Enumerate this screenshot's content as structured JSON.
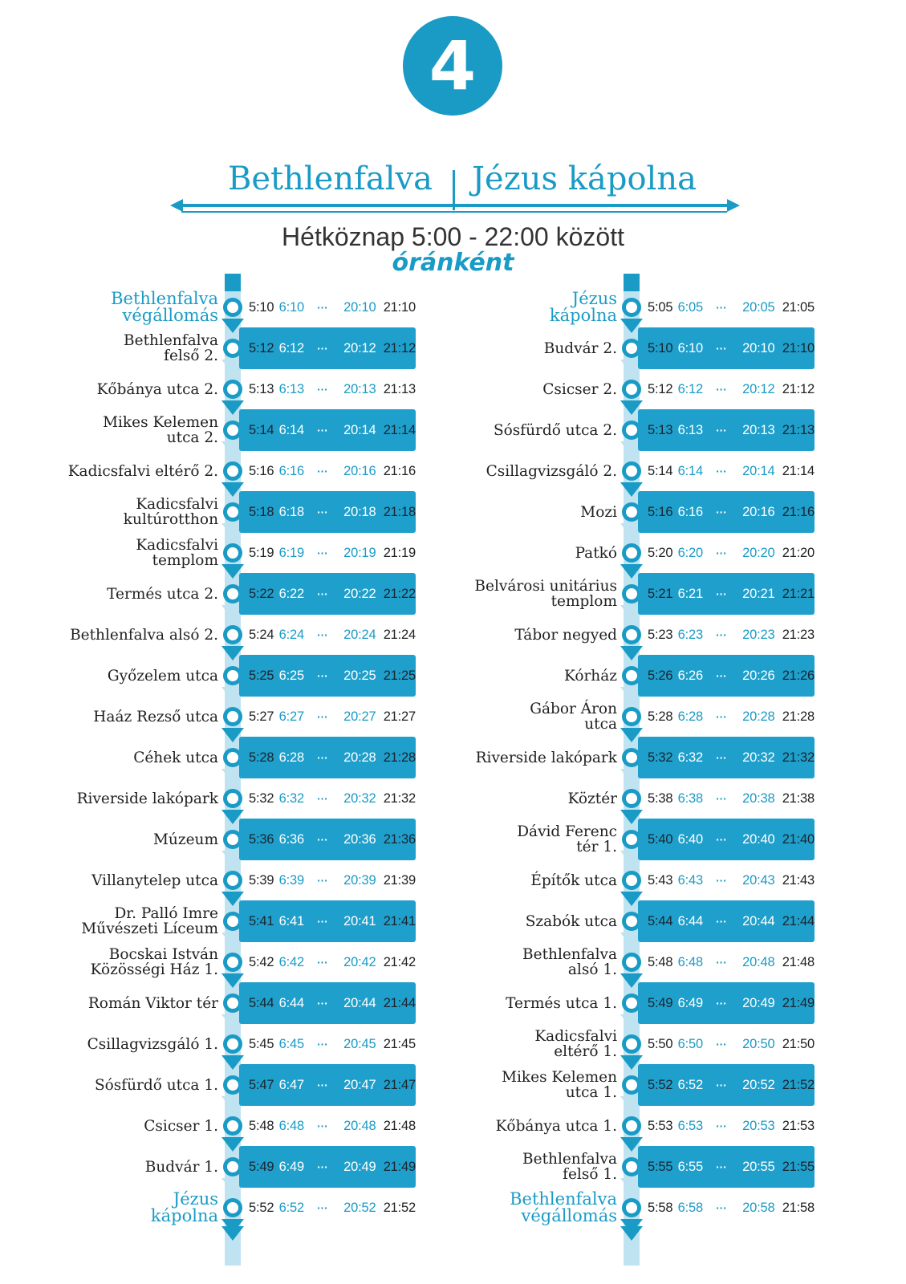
{
  "route": "4",
  "header": {
    "left_terminal": "Bethlenfalva",
    "right_terminal": "Jézus kápolna",
    "schedule": "Hétköznap 5:00 - 22:00 között",
    "frequency": "óránként"
  },
  "ellipsis": "···",
  "colors": {
    "accent": "#1a9bc6",
    "spine": "#bfe3f1"
  },
  "left_stops": [
    {
      "name": [
        "Bethlenfalva",
        "végállomás"
      ],
      "terminal": true,
      "times": [
        "5:10",
        "6:10",
        "20:10",
        "21:10"
      ]
    },
    {
      "name": [
        "Bethlenfalva",
        "felső 2."
      ],
      "times": [
        "5:12",
        "6:12",
        "20:12",
        "21:12"
      ]
    },
    {
      "name": [
        "Kőbánya utca 2."
      ],
      "times": [
        "5:13",
        "6:13",
        "20:13",
        "21:13"
      ]
    },
    {
      "name": [
        "Mikes Kelemen",
        "utca 2."
      ],
      "times": [
        "5:14",
        "6:14",
        "20:14",
        "21:14"
      ]
    },
    {
      "name": [
        "Kadicsfalvi eltérő 2."
      ],
      "times": [
        "5:16",
        "6:16",
        "20:16",
        "21:16"
      ]
    },
    {
      "name": [
        "Kadicsfalvi",
        "kultúrotthon"
      ],
      "times": [
        "5:18",
        "6:18",
        "20:18",
        "21:18"
      ]
    },
    {
      "name": [
        "Kadicsfalvi",
        "templom"
      ],
      "times": [
        "5:19",
        "6:19",
        "20:19",
        "21:19"
      ]
    },
    {
      "name": [
        "Termés utca 2."
      ],
      "times": [
        "5:22",
        "6:22",
        "20:22",
        "21:22"
      ]
    },
    {
      "name": [
        "Bethlenfalva alsó 2."
      ],
      "times": [
        "5:24",
        "6:24",
        "20:24",
        "21:24"
      ]
    },
    {
      "name": [
        "Győzelem utca"
      ],
      "times": [
        "5:25",
        "6:25",
        "20:25",
        "21:25"
      ]
    },
    {
      "name": [
        "Haáz Rezső utca"
      ],
      "times": [
        "5:27",
        "6:27",
        "20:27",
        "21:27"
      ]
    },
    {
      "name": [
        "Céhek utca"
      ],
      "times": [
        "5:28",
        "6:28",
        "20:28",
        "21:28"
      ]
    },
    {
      "name": [
        "Riverside lakópark"
      ],
      "times": [
        "5:32",
        "6:32",
        "20:32",
        "21:32"
      ]
    },
    {
      "name": [
        "Múzeum"
      ],
      "times": [
        "5:36",
        "6:36",
        "20:36",
        "21:36"
      ]
    },
    {
      "name": [
        "Villanytelep utca"
      ],
      "times": [
        "5:39",
        "6:39",
        "20:39",
        "21:39"
      ]
    },
    {
      "name": [
        "Dr. Palló Imre",
        "Művészeti Líceum"
      ],
      "times": [
        "5:41",
        "6:41",
        "20:41",
        "21:41"
      ]
    },
    {
      "name": [
        "Bocskai István",
        "Közösségi Ház 1."
      ],
      "times": [
        "5:42",
        "6:42",
        "20:42",
        "21:42"
      ]
    },
    {
      "name": [
        "Román Viktor tér"
      ],
      "times": [
        "5:44",
        "6:44",
        "20:44",
        "21:44"
      ]
    },
    {
      "name": [
        "Csillagvizsgáló 1."
      ],
      "times": [
        "5:45",
        "6:45",
        "20:45",
        "21:45"
      ]
    },
    {
      "name": [
        "Sósfürdő utca 1."
      ],
      "times": [
        "5:47",
        "6:47",
        "20:47",
        "21:47"
      ]
    },
    {
      "name": [
        "Csicser 1."
      ],
      "times": [
        "5:48",
        "6:48",
        "20:48",
        "21:48"
      ]
    },
    {
      "name": [
        "Budvár 1."
      ],
      "times": [
        "5:49",
        "6:49",
        "20:49",
        "21:49"
      ]
    },
    {
      "name": [
        "Jézus",
        "kápolna"
      ],
      "terminal": true,
      "times": [
        "5:52",
        "6:52",
        "20:52",
        "21:52"
      ]
    }
  ],
  "right_stops": [
    {
      "name": [
        "Jézus",
        "kápolna"
      ],
      "terminal": true,
      "times": [
        "5:05",
        "6:05",
        "20:05",
        "21:05"
      ]
    },
    {
      "name": [
        "Budvár 2."
      ],
      "times": [
        "5:10",
        "6:10",
        "20:10",
        "21:10"
      ]
    },
    {
      "name": [
        "Csicser 2."
      ],
      "times": [
        "5:12",
        "6:12",
        "20:12",
        "21:12"
      ]
    },
    {
      "name": [
        "Sósfürdő utca 2."
      ],
      "times": [
        "5:13",
        "6:13",
        "20:13",
        "21:13"
      ]
    },
    {
      "name": [
        "Csillagvizsgáló 2."
      ],
      "times": [
        "5:14",
        "6:14",
        "20:14",
        "21:14"
      ]
    },
    {
      "name": [
        "Mozi"
      ],
      "times": [
        "5:16",
        "6:16",
        "20:16",
        "21:16"
      ]
    },
    {
      "name": [
        "Patkó"
      ],
      "times": [
        "5:20",
        "6:20",
        "20:20",
        "21:20"
      ]
    },
    {
      "name": [
        "Belvárosi unitárius",
        "templom"
      ],
      "times": [
        "5:21",
        "6:21",
        "20:21",
        "21:21"
      ]
    },
    {
      "name": [
        "Tábor negyed"
      ],
      "times": [
        "5:23",
        "6:23",
        "20:23",
        "21:23"
      ]
    },
    {
      "name": [
        "Kórház"
      ],
      "times": [
        "5:26",
        "6:26",
        "20:26",
        "21:26"
      ]
    },
    {
      "name": [
        "Gábor Áron",
        "utca"
      ],
      "times": [
        "5:28",
        "6:28",
        "20:28",
        "21:28"
      ]
    },
    {
      "name": [
        "Riverside lakópark"
      ],
      "times": [
        "5:32",
        "6:32",
        "20:32",
        "21:32"
      ]
    },
    {
      "name": [
        "Köztér"
      ],
      "times": [
        "5:38",
        "6:38",
        "20:38",
        "21:38"
      ]
    },
    {
      "name": [
        "Dávid Ferenc",
        "tér 1."
      ],
      "times": [
        "5:40",
        "6:40",
        "20:40",
        "21:40"
      ]
    },
    {
      "name": [
        "Építők utca"
      ],
      "times": [
        "5:43",
        "6:43",
        "20:43",
        "21:43"
      ]
    },
    {
      "name": [
        "Szabók utca"
      ],
      "times": [
        "5:44",
        "6:44",
        "20:44",
        "21:44"
      ]
    },
    {
      "name": [
        "Bethlenfalva",
        "alsó 1."
      ],
      "times": [
        "5:48",
        "6:48",
        "20:48",
        "21:48"
      ]
    },
    {
      "name": [
        "Termés utca 1."
      ],
      "times": [
        "5:49",
        "6:49",
        "20:49",
        "21:49"
      ]
    },
    {
      "name": [
        "Kadicsfalvi",
        "eltérő 1."
      ],
      "times": [
        "5:50",
        "6:50",
        "20:50",
        "21:50"
      ]
    },
    {
      "name": [
        "Mikes Kelemen",
        "utca 1."
      ],
      "times": [
        "5:52",
        "6:52",
        "20:52",
        "21:52"
      ]
    },
    {
      "name": [
        "Kőbánya utca 1."
      ],
      "times": [
        "5:53",
        "6:53",
        "20:53",
        "21:53"
      ]
    },
    {
      "name": [
        "Bethlenfalva",
        "felső 1."
      ],
      "times": [
        "5:55",
        "6:55",
        "20:55",
        "21:55"
      ]
    },
    {
      "name": [
        "Bethlenfalva",
        "végállomás"
      ],
      "terminal": true,
      "times": [
        "5:58",
        "6:58",
        "20:58",
        "21:58"
      ]
    }
  ]
}
